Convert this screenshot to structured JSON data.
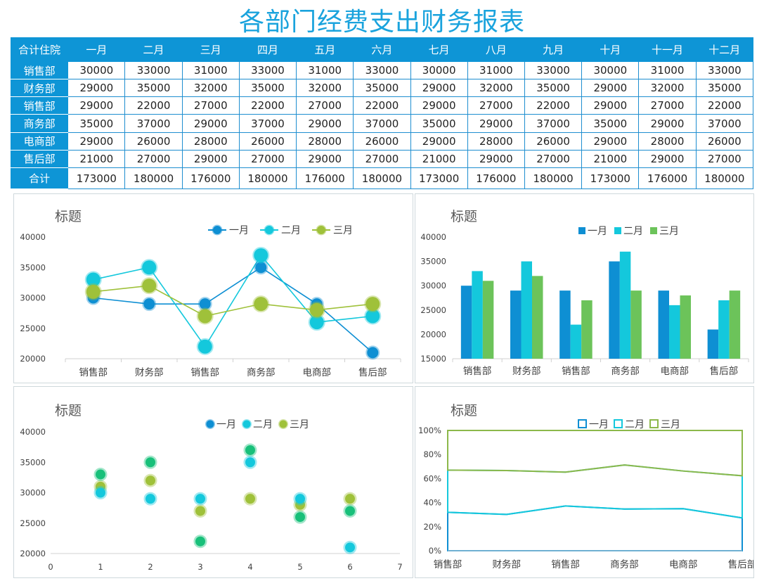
{
  "title": "各部门经费支出财务报表",
  "table": {
    "corner": "合计住院",
    "months": [
      "一月",
      "二月",
      "三月",
      "四月",
      "五月",
      "六月",
      "七月",
      "八月",
      "九月",
      "十月",
      "十一月",
      "十二月"
    ],
    "rows": [
      {
        "dept": "销售部",
        "values": [
          "30000",
          "33000",
          "31000",
          "33000",
          "31000",
          "33000",
          "30000",
          "31000",
          "33000",
          "30000",
          "31000",
          "33000"
        ]
      },
      {
        "dept": "财务部",
        "values": [
          "29000",
          "35000",
          "32000",
          "35000",
          "32000",
          "35000",
          "29000",
          "32000",
          "35000",
          "29000",
          "32000",
          "35000"
        ]
      },
      {
        "dept": "销售部",
        "values": [
          "29000",
          "22000",
          "27000",
          "22000",
          "27000",
          "22000",
          "29000",
          "27000",
          "22000",
          "29000",
          "27000",
          "22000"
        ]
      },
      {
        "dept": "商务部",
        "values": [
          "35000",
          "37000",
          "29000",
          "37000",
          "29000",
          "37000",
          "35000",
          "29000",
          "37000",
          "35000",
          "29000",
          "37000"
        ]
      },
      {
        "dept": "电商部",
        "values": [
          "29000",
          "26000",
          "28000",
          "26000",
          "28000",
          "26000",
          "29000",
          "28000",
          "26000",
          "29000",
          "28000",
          "26000"
        ]
      },
      {
        "dept": "售后部",
        "values": [
          "21000",
          "27000",
          "29000",
          "27000",
          "29000",
          "27000",
          "21000",
          "29000",
          "27000",
          "21000",
          "29000",
          "27000"
        ]
      }
    ],
    "total": {
      "label": "合计",
      "values": [
        "173000",
        "180000",
        "176000",
        "180000",
        "176000",
        "180000",
        "173000",
        "176000",
        "180000",
        "173000",
        "176000",
        "180000"
      ]
    }
  },
  "colors": {
    "s1": "#0e8fd3",
    "s2": "#14c8dc",
    "s3": "#9fc13a",
    "bar3": "#6cc35a",
    "area3": "#8cb84a"
  },
  "chart_data": [
    {
      "type": "line",
      "title": "标题",
      "categories": [
        "销售部",
        "财务部",
        "销售部",
        "商务部",
        "电商部",
        "售后部"
      ],
      "series": [
        {
          "name": "一月",
          "values": [
            30000,
            29000,
            29000,
            35000,
            29000,
            21000
          ]
        },
        {
          "name": "二月",
          "values": [
            33000,
            35000,
            22000,
            37000,
            26000,
            27000
          ]
        },
        {
          "name": "三月",
          "values": [
            31000,
            32000,
            27000,
            29000,
            28000,
            29000
          ]
        }
      ],
      "ylim": [
        20000,
        40000
      ],
      "yticks": [
        "20000",
        "25000",
        "30000",
        "35000",
        "40000"
      ],
      "legend": "top-right"
    },
    {
      "type": "bar",
      "title": "标题",
      "categories": [
        "销售部",
        "财务部",
        "销售部",
        "商务部",
        "电商部",
        "售后部"
      ],
      "series": [
        {
          "name": "一月",
          "values": [
            30000,
            29000,
            29000,
            35000,
            29000,
            21000
          ]
        },
        {
          "name": "二月",
          "values": [
            33000,
            35000,
            22000,
            37000,
            26000,
            27000
          ]
        },
        {
          "name": "三月",
          "values": [
            31000,
            32000,
            27000,
            29000,
            28000,
            29000
          ]
        }
      ],
      "ylim": [
        15000,
        40000
      ],
      "yticks": [
        "15000",
        "20000",
        "25000",
        "30000",
        "35000",
        "40000"
      ],
      "legend": "top-right"
    },
    {
      "type": "scatter",
      "title": "标题",
      "x": [
        1,
        2,
        3,
        4,
        5,
        6
      ],
      "series": [
        {
          "name": "一月",
          "values": [
            30000,
            29000,
            29000,
            35000,
            29000,
            21000
          ]
        },
        {
          "name": "二月",
          "values": [
            33000,
            35000,
            22000,
            37000,
            26000,
            27000
          ]
        },
        {
          "name": "三月",
          "values": [
            31000,
            32000,
            27000,
            29000,
            28000,
            29000
          ]
        }
      ],
      "xlim": [
        0,
        7
      ],
      "xticks": [
        "0",
        "1",
        "2",
        "3",
        "4",
        "5",
        "6",
        "7"
      ],
      "ylim": [
        20000,
        40000
      ],
      "yticks": [
        "20000",
        "25000",
        "30000",
        "35000",
        "40000"
      ],
      "legend": "top-right"
    },
    {
      "type": "area",
      "stacking": "percent",
      "title": "标题",
      "categories": [
        "销售部",
        "财务部",
        "销售部",
        "商务部",
        "电商部",
        "售后部"
      ],
      "series": [
        {
          "name": "一月",
          "values": [
            30000,
            29000,
            29000,
            35000,
            29000,
            21000
          ]
        },
        {
          "name": "二月",
          "values": [
            33000,
            35000,
            22000,
            37000,
            26000,
            27000
          ]
        },
        {
          "name": "三月",
          "values": [
            31000,
            32000,
            27000,
            29000,
            28000,
            29000
          ]
        }
      ],
      "ylim": [
        0,
        100
      ],
      "yticks": [
        "0%",
        "20%",
        "40%",
        "60%",
        "80%",
        "100%"
      ],
      "legend": "top-right"
    }
  ]
}
